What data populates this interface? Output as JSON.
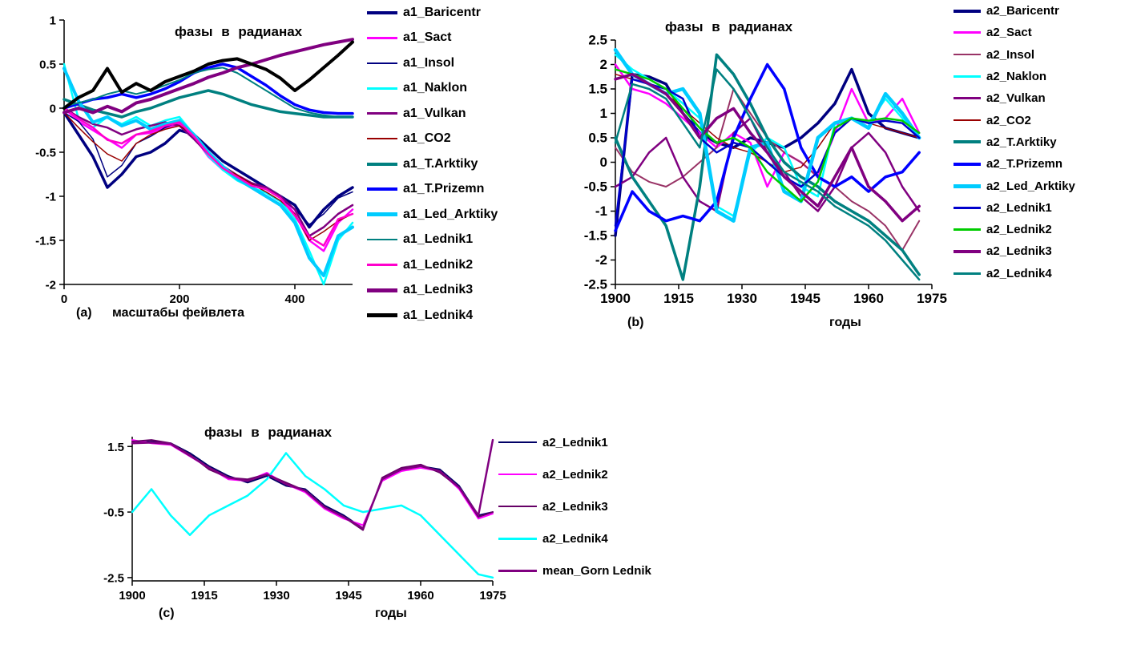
{
  "figure": {
    "background": "#FFFFFF"
  },
  "chart_data": [
    {
      "id": "a",
      "type": "line",
      "title": "фазы в радианах",
      "caption": "(a)",
      "xlabel": "масштабы фейвлета",
      "xlim": [
        0,
        500
      ],
      "ylim": [
        -2,
        1
      ],
      "xticks": [
        0,
        200,
        400
      ],
      "yticks": [
        1,
        0.5,
        0,
        -0.5,
        -1,
        -1.5,
        -2
      ],
      "grid": false,
      "legend_position": "right",
      "x": [
        0,
        25,
        50,
        75,
        100,
        125,
        150,
        175,
        200,
        225,
        250,
        275,
        300,
        325,
        350,
        375,
        400,
        425,
        450,
        475,
        500
      ],
      "series": [
        {
          "name": "a1_Baricentr",
          "color": "#000080",
          "width": 3.5,
          "values": [
            -0.05,
            -0.3,
            -0.55,
            -0.9,
            -0.75,
            -0.55,
            -0.5,
            -0.4,
            -0.25,
            -0.3,
            -0.45,
            -0.6,
            -0.7,
            -0.8,
            -0.9,
            -1.0,
            -1.1,
            -1.35,
            -1.15,
            -1.0,
            -0.9
          ]
        },
        {
          "name": "a1_Sact",
          "color": "#FF00FF",
          "width": 2.5,
          "values": [
            0,
            -0.15,
            -0.25,
            -0.35,
            -0.45,
            -0.3,
            -0.28,
            -0.22,
            -0.18,
            -0.32,
            -0.55,
            -0.7,
            -0.8,
            -0.86,
            -0.9,
            -1.0,
            -1.2,
            -1.5,
            -1.62,
            -1.3,
            -1.15
          ]
        },
        {
          "name": "a1_Insol",
          "color": "#000080",
          "width": 1.5,
          "values": [
            -0.05,
            -0.15,
            -0.35,
            -0.78,
            -0.65,
            -0.4,
            -0.32,
            -0.22,
            -0.15,
            -0.3,
            -0.5,
            -0.65,
            -0.76,
            -0.85,
            -0.92,
            -1.02,
            -1.15,
            -1.32,
            -1.2,
            -1.02,
            -0.95
          ]
        },
        {
          "name": "a1_Naklon",
          "color": "#00FFFF",
          "width": 2.5,
          "values": [
            0.5,
            -0.12,
            -0.22,
            -0.1,
            -0.18,
            -0.1,
            -0.2,
            -0.14,
            -0.1,
            -0.3,
            -0.54,
            -0.7,
            -0.82,
            -0.9,
            -0.96,
            -1.06,
            -1.26,
            -1.62,
            -2.0,
            -1.5,
            -1.3
          ]
        },
        {
          "name": "a1_Vulkan",
          "color": "#800080",
          "width": 2.5,
          "values": [
            0,
            -0.1,
            -0.18,
            -0.22,
            -0.3,
            -0.24,
            -0.2,
            -0.16,
            -0.2,
            -0.35,
            -0.52,
            -0.66,
            -0.76,
            -0.85,
            -0.9,
            -1.0,
            -1.15,
            -1.45,
            -1.35,
            -1.2,
            -1.1
          ]
        },
        {
          "name": "a1_CO2",
          "color": "#990000",
          "width": 1.5,
          "values": [
            -0.05,
            -0.22,
            -0.38,
            -0.52,
            -0.6,
            -0.4,
            -0.3,
            -0.24,
            -0.2,
            -0.3,
            -0.5,
            -0.66,
            -0.76,
            -0.86,
            -0.95,
            -1.05,
            -1.2,
            -1.5,
            -1.4,
            -1.28,
            -1.2
          ]
        },
        {
          "name": "a1_T.Arktiky",
          "color": "#008080",
          "width": 3.5,
          "values": [
            0.1,
            0.04,
            -0.02,
            -0.06,
            -0.1,
            -0.04,
            0,
            0.06,
            0.12,
            0.16,
            0.2,
            0.16,
            0.1,
            0.04,
            0,
            -0.04,
            -0.06,
            -0.08,
            -0.1,
            -0.1,
            -0.1
          ]
        },
        {
          "name": "a1_T.Prizemn",
          "color": "#0000FF",
          "width": 3.5,
          "values": [
            0,
            0.05,
            0.1,
            0.12,
            0.16,
            0.12,
            0.16,
            0.22,
            0.3,
            0.4,
            0.46,
            0.5,
            0.46,
            0.36,
            0.26,
            0.14,
            0.04,
            -0.02,
            -0.05,
            -0.06,
            -0.06
          ]
        },
        {
          "name": "a1_Led_Arktiky",
          "color": "#00CCFF",
          "width": 4,
          "values": [
            0.45,
            0.08,
            -0.16,
            -0.1,
            -0.2,
            -0.14,
            -0.24,
            -0.18,
            -0.14,
            -0.3,
            -0.5,
            -0.66,
            -0.8,
            -0.9,
            -1.0,
            -1.1,
            -1.3,
            -1.7,
            -1.9,
            -1.45,
            -1.35
          ]
        },
        {
          "name": "a1_Lednik1",
          "color": "#008080",
          "width": 2,
          "values": [
            0.02,
            0.06,
            0.1,
            0.16,
            0.2,
            0.16,
            0.2,
            0.26,
            0.32,
            0.4,
            0.44,
            0.46,
            0.4,
            0.3,
            0.2,
            0.1,
            0,
            -0.05,
            -0.08,
            -0.1,
            -0.1
          ]
        },
        {
          "name": "a1_Lednik2",
          "color": "#FF00CC",
          "width": 2.5,
          "values": [
            0,
            -0.12,
            -0.22,
            -0.36,
            -0.4,
            -0.3,
            -0.26,
            -0.2,
            -0.16,
            -0.32,
            -0.52,
            -0.68,
            -0.78,
            -0.88,
            -0.92,
            -1.02,
            -1.22,
            -1.46,
            -1.56,
            -1.26,
            -1.2
          ]
        },
        {
          "name": "a1_Lednik3",
          "color": "#800080",
          "width": 4,
          "values": [
            -0.05,
            0,
            -0.05,
            0.02,
            -0.04,
            0.06,
            0.1,
            0.16,
            0.22,
            0.28,
            0.35,
            0.4,
            0.46,
            0.5,
            0.55,
            0.6,
            0.64,
            0.68,
            0.72,
            0.75,
            0.78
          ]
        },
        {
          "name": "a1_Lednik4",
          "color": "#000000",
          "width": 4,
          "values": [
            0,
            0.12,
            0.2,
            0.45,
            0.18,
            0.28,
            0.2,
            0.3,
            0.36,
            0.42,
            0.5,
            0.54,
            0.56,
            0.5,
            0.44,
            0.34,
            0.2,
            0.32,
            0.46,
            0.6,
            0.75
          ]
        }
      ]
    },
    {
      "id": "b",
      "type": "line",
      "title": "фазы в радианах",
      "caption": "(b)",
      "xlabel": "годы",
      "xlim": [
        1900,
        1975
      ],
      "ylim": [
        -2.5,
        2.5
      ],
      "xticks": [
        1900,
        1915,
        1930,
        1945,
        1960,
        1975
      ],
      "yticks": [
        2.5,
        2,
        1.5,
        1,
        0.5,
        0,
        -0.5,
        -1,
        -1.5,
        -2,
        -2.5
      ],
      "grid": false,
      "legend_position": "right",
      "x": [
        1900,
        1904,
        1908,
        1912,
        1916,
        1920,
        1924,
        1928,
        1932,
        1936,
        1940,
        1944,
        1948,
        1952,
        1956,
        1960,
        1964,
        1968,
        1972
      ],
      "series": [
        {
          "name": "a2_Baricentr",
          "color": "#000080",
          "width": 3.5,
          "values": [
            -1.5,
            1.8,
            1.75,
            1.6,
            1.0,
            0.6,
            0.4,
            0.3,
            0.5,
            0.4,
            0.3,
            0.5,
            0.8,
            1.2,
            1.9,
            1.0,
            0.7,
            0.6,
            0.5
          ]
        },
        {
          "name": "a2_Sact",
          "color": "#FF00FF",
          "width": 2.5,
          "values": [
            2.0,
            1.5,
            1.4,
            1.2,
            0.9,
            0.6,
            0.3,
            0.6,
            0.4,
            -0.5,
            0.2,
            0,
            -0.3,
            0.6,
            1.5,
            0.8,
            0.9,
            1.3,
            0.6
          ]
        },
        {
          "name": "a2_Insol",
          "color": "#993366",
          "width": 2,
          "values": [
            0.3,
            -0.2,
            -0.4,
            -0.5,
            -0.3,
            0,
            0.3,
            1.5,
            1.0,
            0.5,
            0.2,
            0,
            -0.3,
            -0.5,
            -0.8,
            -1.0,
            -1.3,
            -1.8,
            -1.2
          ]
        },
        {
          "name": "a2_Naklon",
          "color": "#00FFFF",
          "width": 2.5,
          "values": [
            2.2,
            1.9,
            1.7,
            1.5,
            1.2,
            0.9,
            -0.9,
            -1.1,
            0.2,
            0.5,
            0.3,
            -0.5,
            -0.7,
            0.8,
            0.9,
            0.8,
            1.3,
            0.9,
            0.5
          ]
        },
        {
          "name": "a2_Vulkan",
          "color": "#800080",
          "width": 2.5,
          "values": [
            -0.5,
            -0.3,
            0.2,
            0.5,
            -0.3,
            -0.8,
            -1.0,
            0.6,
            0.9,
            0.2,
            -0.2,
            -0.7,
            -1.0,
            -0.5,
            0.3,
            0.6,
            0.2,
            -0.5,
            -1.0
          ]
        },
        {
          "name": "a2_CO2",
          "color": "#990000",
          "width": 1.5,
          "values": [
            1.8,
            1.7,
            1.6,
            1.4,
            1.1,
            0.8,
            0.5,
            0.3,
            0.2,
            0,
            -0.2,
            -0.1,
            0.3,
            0.8,
            0.9,
            0.8,
            0.7,
            0.6,
            0.5
          ]
        },
        {
          "name": "a2_T.Arktiky",
          "color": "#008080",
          "width": 3.5,
          "values": [
            0.5,
            -0.3,
            -0.8,
            -1.3,
            -2.4,
            -0.5,
            2.2,
            1.8,
            1.2,
            0.5,
            0,
            -0.3,
            -0.5,
            -0.8,
            -1.0,
            -1.2,
            -1.5,
            -1.8,
            -2.3
          ]
        },
        {
          "name": "a2_T.Prizemn",
          "color": "#0000FF",
          "width": 3.5,
          "values": [
            -1.4,
            -0.6,
            -1.0,
            -1.2,
            -1.1,
            -1.2,
            -0.8,
            0.5,
            1.3,
            2.0,
            1.5,
            0.3,
            -0.3,
            -0.5,
            -0.3,
            -0.6,
            -0.3,
            -0.2,
            0.2
          ]
        },
        {
          "name": "a2_Led_Arktiky",
          "color": "#00CCFF",
          "width": 4.5,
          "values": [
            2.3,
            1.8,
            1.6,
            1.4,
            1.5,
            1.0,
            -1.0,
            -1.2,
            0.3,
            0.4,
            -0.6,
            -0.8,
            0.5,
            0.8,
            0.9,
            0.7,
            1.4,
            1.0,
            0.5
          ]
        },
        {
          "name": "a2_Lednik1",
          "color": "#0000CC",
          "width": 2.5,
          "values": [
            -1.3,
            1.7,
            1.6,
            1.5,
            1.3,
            0.5,
            0.2,
            0.4,
            0.3,
            0,
            -0.3,
            -0.5,
            -0.2,
            0.6,
            0.9,
            0.8,
            0.85,
            0.8,
            0.5
          ]
        },
        {
          "name": "a2_Lednik2",
          "color": "#00CC00",
          "width": 2.5,
          "values": [
            1.9,
            1.8,
            1.7,
            1.5,
            1.1,
            0.7,
            0.4,
            0.5,
            0.3,
            -0.2,
            -0.5,
            -0.8,
            -0.4,
            0.7,
            0.9,
            0.85,
            0.9,
            0.85,
            0.6
          ]
        },
        {
          "name": "a2_Lednik3",
          "color": "#800080",
          "width": 3.5,
          "values": [
            1.7,
            1.8,
            1.6,
            1.4,
            1.0,
            0.5,
            0.9,
            1.1,
            0.6,
            0.2,
            -0.3,
            -0.6,
            -0.9,
            -0.3,
            0.3,
            -0.5,
            -0.8,
            -1.2,
            -0.9
          ]
        },
        {
          "name": "a2_Lednik4",
          "color": "#008080",
          "width": 2.5,
          "values": [
            0.4,
            1.6,
            1.5,
            1.3,
            0.8,
            0.3,
            1.9,
            1.5,
            0.9,
            0.3,
            -0.2,
            -0.4,
            -0.6,
            -0.9,
            -1.1,
            -1.3,
            -1.6,
            -2.0,
            -2.4
          ]
        }
      ]
    },
    {
      "id": "c",
      "type": "line",
      "title": "фазы в радианах",
      "caption": "(c)",
      "xlabel": "годы",
      "xlim": [
        1900,
        1975
      ],
      "ylim": [
        -2.6,
        1.8
      ],
      "xticks": [
        1900,
        1915,
        1930,
        1945,
        1960,
        1975
      ],
      "yticks": [
        1.5,
        -0.5,
        -2.5
      ],
      "grid": false,
      "legend_position": "right",
      "x": [
        1900,
        1904,
        1908,
        1912,
        1916,
        1920,
        1924,
        1928,
        1932,
        1936,
        1940,
        1944,
        1948,
        1952,
        1956,
        1960,
        1964,
        1968,
        1972,
        1975
      ],
      "series": [
        {
          "name": "a2_Lednik1",
          "color": "#000066",
          "width": 2,
          "values": [
            1.6,
            1.65,
            1.6,
            1.3,
            0.9,
            0.6,
            0.4,
            0.6,
            0.3,
            0.2,
            -0.3,
            -0.6,
            -1.0,
            0.5,
            0.8,
            0.9,
            0.8,
            0.3,
            -0.6,
            -0.5
          ]
        },
        {
          "name": "a2_Lednik2",
          "color": "#FF00FF",
          "width": 2,
          "values": [
            1.7,
            1.6,
            1.55,
            1.2,
            0.85,
            0.5,
            0.45,
            0.7,
            0.35,
            0.1,
            -0.4,
            -0.7,
            -0.9,
            0.45,
            0.75,
            0.85,
            0.75,
            0.2,
            -0.7,
            -0.55
          ]
        },
        {
          "name": "a2_Lednik3",
          "color": "#660066",
          "width": 2,
          "values": [
            1.65,
            1.7,
            1.6,
            1.25,
            0.8,
            0.55,
            0.5,
            0.65,
            0.4,
            0.15,
            -0.35,
            -0.65,
            -1.05,
            0.55,
            0.85,
            0.95,
            0.7,
            0.25,
            -0.65,
            -0.5
          ]
        },
        {
          "name": "a2_Lednik4",
          "color": "#00FFFF",
          "width": 2.5,
          "values": [
            -0.5,
            0.2,
            -0.6,
            -1.2,
            -0.6,
            -0.3,
            0,
            0.5,
            1.3,
            0.6,
            0.2,
            -0.3,
            -0.5,
            -0.4,
            -0.3,
            -0.6,
            -1.2,
            -1.8,
            -2.4,
            -2.5
          ]
        },
        {
          "name": "mean_Gorn Lednik",
          "color": "#800080",
          "width": 2.5,
          "values": [
            1.6,
            1.62,
            1.58,
            1.22,
            0.85,
            0.55,
            0.45,
            0.65,
            0.35,
            0.15,
            -0.35,
            -0.65,
            -1.0,
            0.5,
            0.8,
            0.9,
            0.75,
            0.25,
            -0.6,
            1.7
          ]
        }
      ]
    }
  ]
}
